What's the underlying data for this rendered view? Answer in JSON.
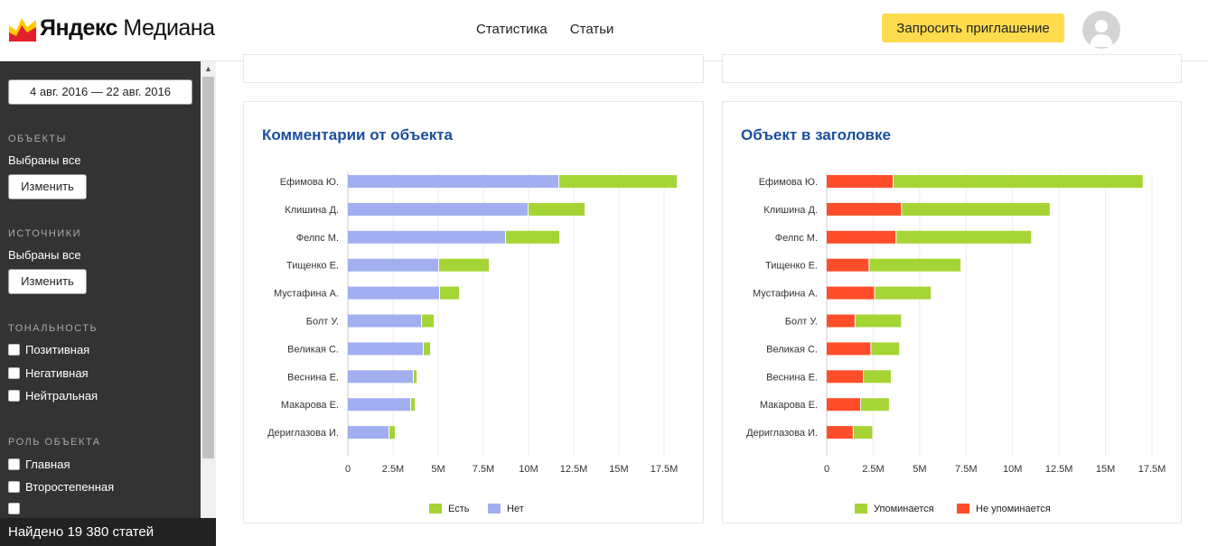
{
  "header": {
    "logo_bold": "Яндекс",
    "logo_light": "Медиана",
    "nav": [
      {
        "label": "Статистика",
        "active": true
      },
      {
        "label": "Статьи",
        "active": false
      }
    ],
    "invite_label": "Запросить приглашение"
  },
  "sidebar": {
    "date_range": "4 авг. 2016  —  22 авг. 2016",
    "objects": {
      "title": "ОБЪЕКТЫ",
      "value": "Выбраны все",
      "button": "Изменить"
    },
    "sources": {
      "title": "ИСТОЧНИКИ",
      "value": "Выбраны все",
      "button": "Изменить"
    },
    "tone": {
      "title": "ТОНАЛЬНОСТЬ",
      "options": [
        "Позитивная",
        "Негативная",
        "Нейтральная"
      ]
    },
    "role": {
      "title": "РОЛЬ ОБЪЕКТА",
      "options": [
        "Главная",
        "Второстепенная"
      ]
    },
    "found": "Найдено 19 380 статей"
  },
  "chart_data": [
    {
      "type": "bar",
      "orientation": "horizontal",
      "stacked": true,
      "title": "Комментарии от объекта",
      "categories": [
        "Ефимова Ю.",
        "Клишина Д.",
        "Фелпс М.",
        "Тищенко Е.",
        "Мустафина А.",
        "Болт У.",
        "Великая С.",
        "Веснина Е.",
        "Макарова Е.",
        "Дериглазова И."
      ],
      "series": [
        {
          "name": "Нет",
          "color": "#a1aff0",
          "values": [
            11.7,
            10.0,
            8.75,
            5.05,
            5.1,
            4.1,
            4.2,
            3.65,
            3.5,
            2.3
          ]
        },
        {
          "name": "Есть",
          "color": "#a5d435",
          "values": [
            6.5,
            3.1,
            2.95,
            2.75,
            1.05,
            0.65,
            0.35,
            0.15,
            0.2,
            0.3
          ]
        }
      ],
      "xlim": [
        0,
        17.5
      ],
      "xticks": [
        "0",
        "2.5M",
        "5M",
        "7.5M",
        "10M",
        "12.5M",
        "15M",
        "17.5M"
      ],
      "legend": [
        {
          "name": "Есть",
          "color": "#a5d435"
        },
        {
          "name": "Нет",
          "color": "#a1aff0"
        }
      ],
      "legend_position": "bottom",
      "grid": true
    },
    {
      "type": "bar",
      "orientation": "horizontal",
      "stacked": true,
      "title": "Объект в заголовке",
      "categories": [
        "Ефимова Ю.",
        "Клишина Д.",
        "Фелпс М.",
        "Тищенко Е.",
        "Мустафина А.",
        "Болт У.",
        "Великая С.",
        "Веснина Е.",
        "Макарова Е.",
        "Дериглазова И."
      ],
      "series": [
        {
          "name": "Не упоминается",
          "color": "#ff4d2a",
          "values": [
            3.6,
            4.05,
            3.75,
            2.3,
            2.6,
            1.55,
            2.4,
            2.0,
            1.85,
            1.45
          ]
        },
        {
          "name": "Упоминается",
          "color": "#a5d435",
          "values": [
            13.4,
            7.95,
            7.25,
            4.9,
            3.0,
            2.45,
            1.5,
            1.45,
            1.5,
            1.0
          ]
        }
      ],
      "xlim": [
        0,
        17.5
      ],
      "xticks": [
        "0",
        "2.5M",
        "5M",
        "7.5M",
        "10M",
        "12.5M",
        "15M",
        "17.5M"
      ],
      "legend": [
        {
          "name": "Упоминается",
          "color": "#a5d435"
        },
        {
          "name": "Не упоминается",
          "color": "#ff4d2a"
        }
      ],
      "legend_position": "bottom",
      "grid": true
    }
  ]
}
